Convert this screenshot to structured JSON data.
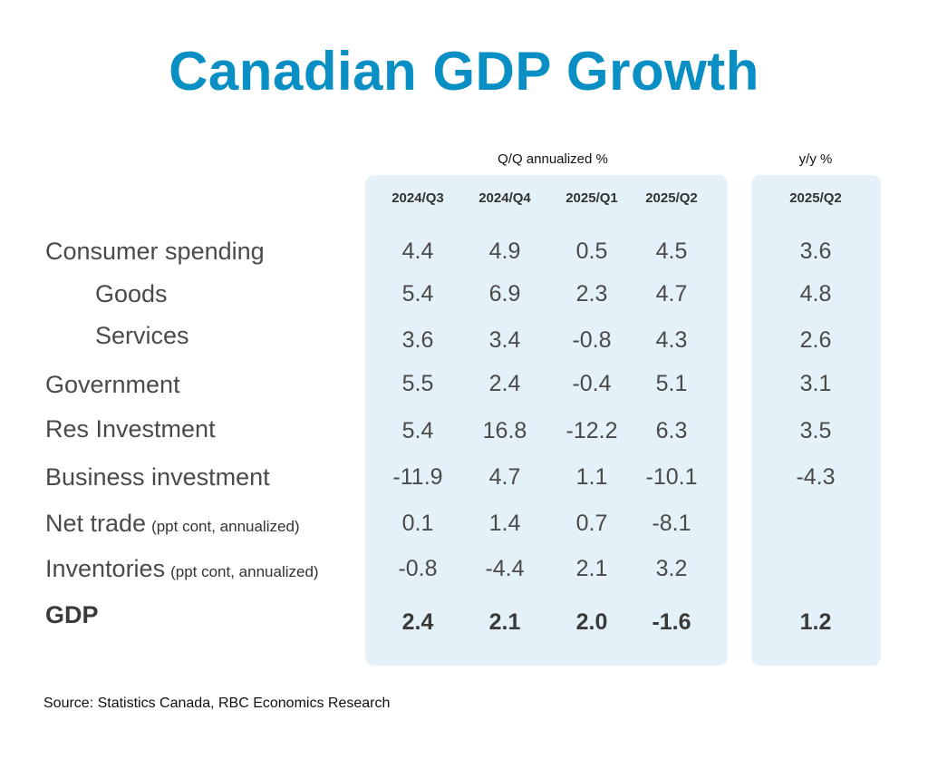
{
  "title": "Canadian GDP Growth",
  "group_labels": {
    "qq": "Q/Q annualized %",
    "yy": "y/y %"
  },
  "source": "Source:  Statistics Canada, RBC Economics Research",
  "colors": {
    "title": "#0a8fc4",
    "panel": "#e4f1f8",
    "text": "#4a4a4a"
  },
  "chart_data": {
    "type": "table",
    "title": "Canadian GDP Growth",
    "columns": [
      "2024/Q3",
      "2024/Q4",
      "2025/Q1",
      "2025/Q2",
      "2025/Q2"
    ],
    "column_groups": [
      {
        "label": "Q/Q annualized %",
        "columns": [
          "2024/Q3",
          "2024/Q4",
          "2025/Q1",
          "2025/Q2"
        ]
      },
      {
        "label": "y/y %",
        "columns": [
          "2025/Q2"
        ]
      }
    ],
    "rows": [
      {
        "label": "Consumer spending",
        "note": "",
        "values": [
          "4.4",
          "4.9",
          "0.5",
          "4.5",
          "3.6"
        ]
      },
      {
        "label": "Goods",
        "note": "",
        "values": [
          "5.4",
          "6.9",
          "2.3",
          "4.7",
          "4.8"
        ]
      },
      {
        "label": "Services",
        "note": "",
        "values": [
          "3.6",
          "3.4",
          "-0.8",
          "4.3",
          "2.6"
        ]
      },
      {
        "label": "Government",
        "note": "",
        "values": [
          "5.5",
          "2.4",
          "-0.4",
          "5.1",
          "3.1"
        ]
      },
      {
        "label": "Res Investment",
        "note": "",
        "values": [
          "5.4",
          "16.8",
          "-12.2",
          "6.3",
          "3.5"
        ]
      },
      {
        "label": "Business investment",
        "note": "",
        "values": [
          "-11.9",
          "4.7",
          "1.1",
          "-10.1",
          "-4.3"
        ]
      },
      {
        "label": "Net trade",
        "note": "(ppt cont, annualized)",
        "values": [
          "0.1",
          "1.4",
          "0.7",
          "-8.1",
          ""
        ]
      },
      {
        "label": "Inventories",
        "note": "(ppt cont, annualized)",
        "values": [
          "-0.8",
          "-4.4",
          "2.1",
          "3.2",
          ""
        ]
      },
      {
        "label": "GDP",
        "note": "",
        "values": [
          "2.4",
          "2.1",
          "2.0",
          "-1.6",
          "1.2"
        ]
      }
    ]
  }
}
